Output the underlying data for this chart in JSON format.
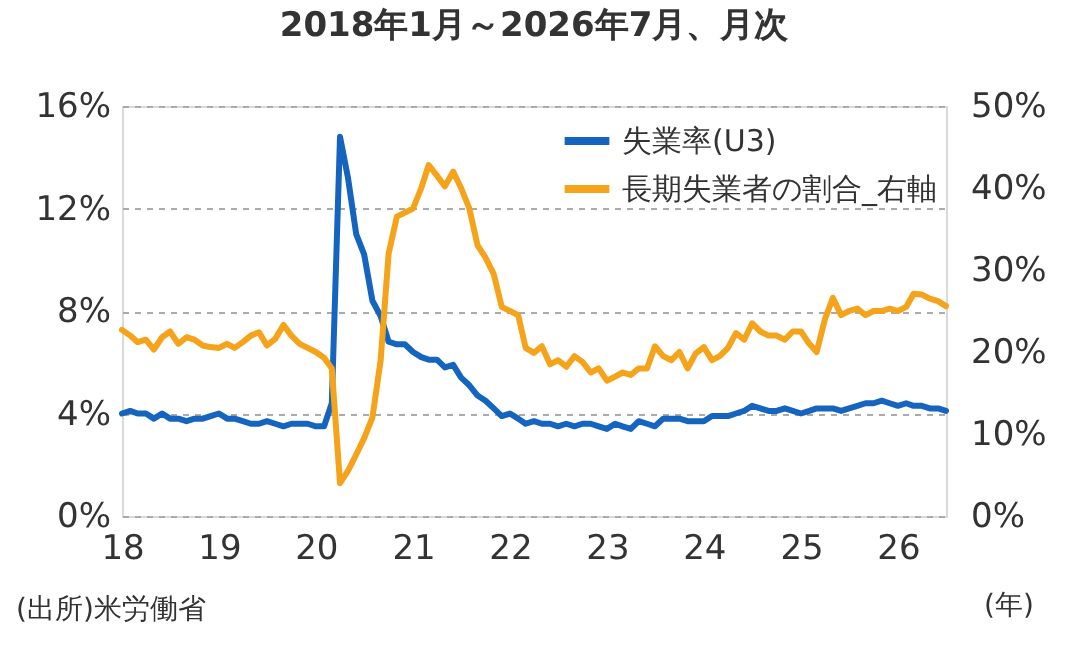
{
  "chart_data": {
    "type": "line",
    "title": "2018年1月～2026年7月、月次",
    "x": [
      "2018-01",
      "2018-02",
      "2018-03",
      "2018-04",
      "2018-05",
      "2018-06",
      "2018-07",
      "2018-08",
      "2018-09",
      "2018-10",
      "2018-11",
      "2018-12",
      "2019-01",
      "2019-02",
      "2019-03",
      "2019-04",
      "2019-05",
      "2019-06",
      "2019-07",
      "2019-08",
      "2019-09",
      "2019-10",
      "2019-11",
      "2019-12",
      "2020-01",
      "2020-02",
      "2020-03",
      "2020-04",
      "2020-05",
      "2020-06",
      "2020-07",
      "2020-08",
      "2020-09",
      "2020-10",
      "2020-11",
      "2020-12",
      "2021-01",
      "2021-02",
      "2021-03",
      "2021-04",
      "2021-05",
      "2021-06",
      "2021-07",
      "2021-08",
      "2021-09",
      "2021-10",
      "2021-11",
      "2021-12",
      "2022-01",
      "2022-02",
      "2022-03",
      "2022-04",
      "2022-05",
      "2022-06",
      "2022-07",
      "2022-08",
      "2022-09",
      "2022-10",
      "2022-11",
      "2022-12",
      "2023-01",
      "2023-02",
      "2023-03",
      "2023-04",
      "2023-05",
      "2023-06",
      "2023-07",
      "2023-08",
      "2023-09",
      "2023-10",
      "2023-11",
      "2023-12",
      "2024-01",
      "2024-02",
      "2024-03",
      "2024-04",
      "2024-05",
      "2024-06",
      "2024-07",
      "2024-08",
      "2024-09",
      "2024-10",
      "2024-11",
      "2024-12",
      "2025-01",
      "2025-02",
      "2025-03",
      "2025-04",
      "2025-05",
      "2025-06",
      "2025-07",
      "2025-08",
      "2025-09",
      "2025-10",
      "2025-11",
      "2025-12",
      "2026-01",
      "2026-02",
      "2026-03",
      "2026-04",
      "2026-05",
      "2026-06",
      "2026-07"
    ],
    "series": [
      {
        "name": "失業率(U3)",
        "color": "#1565c0",
        "values": [
          4.0,
          4.1,
          4.0,
          4.0,
          3.8,
          4.0,
          3.8,
          3.8,
          3.7,
          3.8,
          3.8,
          3.9,
          4.0,
          3.8,
          3.8,
          3.7,
          3.6,
          3.6,
          3.7,
          3.6,
          3.5,
          3.6,
          3.6,
          3.6,
          3.5,
          3.5,
          4.4,
          14.8,
          13.2,
          11.0,
          10.2,
          8.4,
          7.8,
          6.8,
          6.7,
          6.7,
          6.4,
          6.2,
          6.1,
          6.1,
          5.8,
          5.9,
          5.4,
          5.1,
          4.7,
          4.5,
          4.2,
          3.9,
          4.0,
          3.8,
          3.6,
          3.7,
          3.6,
          3.6,
          3.5,
          3.6,
          3.5,
          3.6,
          3.6,
          3.5,
          3.4,
          3.6,
          3.5,
          3.4,
          3.7,
          3.6,
          3.5,
          3.8,
          3.8,
          3.8,
          3.7,
          3.7,
          3.7,
          3.9,
          3.9,
          3.9,
          4.0,
          4.1,
          4.3,
          4.2,
          4.1,
          4.1,
          4.2,
          4.1,
          4.0,
          4.1,
          4.2,
          4.2,
          4.2,
          4.1,
          4.2,
          4.3,
          4.4,
          4.4,
          4.5,
          4.4,
          4.3,
          4.4,
          4.3,
          4.3,
          4.2,
          4.2,
          4.1
        ]
      },
      {
        "name": "長期失業者の割合_右軸",
        "color": "#f5a31a",
        "axis": "y2",
        "values": [
          22.7,
          22.0,
          21.2,
          21.5,
          20.3,
          21.8,
          22.5,
          21.0,
          21.8,
          21.5,
          20.8,
          20.6,
          20.5,
          21.0,
          20.5,
          21.2,
          22.0,
          22.4,
          20.8,
          21.6,
          23.3,
          22.0,
          21.0,
          20.5,
          20.0,
          19.3,
          18.0,
          4.0,
          5.5,
          7.5,
          9.5,
          12.0,
          19.0,
          32.0,
          36.5,
          37.0,
          37.5,
          40.0,
          42.8,
          41.5,
          40.2,
          42.0,
          40.0,
          37.5,
          33.0,
          31.5,
          29.5,
          25.5,
          25.0,
          24.5,
          20.5,
          19.9,
          20.7,
          18.5,
          19.0,
          18.2,
          19.5,
          18.8,
          17.5,
          18.0,
          16.5,
          17.0,
          17.5,
          17.2,
          18.0,
          18.0,
          20.7,
          19.5,
          19.0,
          20.0,
          18.0,
          19.8,
          20.6,
          19.0,
          19.5,
          20.5,
          22.3,
          21.5,
          23.5,
          22.5,
          22.0,
          22.0,
          21.5,
          22.5,
          22.5,
          21.0,
          20.0,
          24.0,
          26.6,
          24.5,
          25.0,
          25.3,
          24.5,
          25.0,
          25.0,
          25.3,
          25.0,
          25.5,
          27.1,
          27.0,
          26.5,
          26.2,
          25.6
        ]
      }
    ],
    "xlim": [
      "2018-01",
      "2026-07"
    ],
    "xticks": [
      {
        "value": "2018-01",
        "label": "18"
      },
      {
        "value": "2019-01",
        "label": "19"
      },
      {
        "value": "2020-01",
        "label": "20"
      },
      {
        "value": "2021-01",
        "label": "21"
      },
      {
        "value": "2022-01",
        "label": "22"
      },
      {
        "value": "2023-01",
        "label": "23"
      },
      {
        "value": "2024-01",
        "label": "24"
      },
      {
        "value": "2025-01",
        "label": "25"
      },
      {
        "value": "2026-01",
        "label": "26"
      }
    ],
    "ylim": [
      0,
      16
    ],
    "yticks": [
      {
        "value": 0,
        "label": "0%"
      },
      {
        "value": 4,
        "label": "4%"
      },
      {
        "value": 8,
        "label": "8%"
      },
      {
        "value": 12,
        "label": "12%"
      },
      {
        "value": 16,
        "label": "16%"
      }
    ],
    "y2lim": [
      0,
      50
    ],
    "y2ticks": [
      {
        "value": 0,
        "label": "0%"
      },
      {
        "value": 10,
        "label": "10%"
      },
      {
        "value": 20,
        "label": "20%"
      },
      {
        "value": 30,
        "label": "30%"
      },
      {
        "value": 40,
        "label": "40%"
      },
      {
        "value": 50,
        "label": "50%"
      }
    ],
    "grid": "y",
    "legend": "top right",
    "line_style": "solid",
    "annotations": [
      "(出所)米労働省",
      "(年)"
    ]
  }
}
